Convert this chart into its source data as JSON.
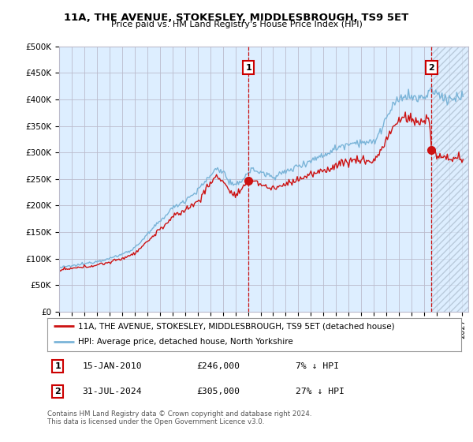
{
  "title": "11A, THE AVENUE, STOKESLEY, MIDDLESBROUGH, TS9 5ET",
  "subtitle": "Price paid vs. HM Land Registry's House Price Index (HPI)",
  "yticks": [
    0,
    50000,
    100000,
    150000,
    200000,
    250000,
    300000,
    350000,
    400000,
    450000,
    500000
  ],
  "ytick_labels": [
    "£0",
    "£50K",
    "£100K",
    "£150K",
    "£200K",
    "£250K",
    "£300K",
    "£350K",
    "£400K",
    "£450K",
    "£500K"
  ],
  "ylim": [
    0,
    500000
  ],
  "xlim_start": 1995.0,
  "xlim_end": 2027.5,
  "chart_bg_color": "#ddeeff",
  "background_color": "#ffffff",
  "grid_color": "#bbbbcc",
  "sale1_x": 2010.04,
  "sale1_y": 246000,
  "sale1_label": "1",
  "sale2_x": 2024.583,
  "sale2_y": 305000,
  "sale2_label": "2",
  "hpi_color": "#7ab4d8",
  "price_color": "#cc1111",
  "legend_label1": "11A, THE AVENUE, STOKESLEY, MIDDLESBROUGH, TS9 5ET (detached house)",
  "legend_label2": "HPI: Average price, detached house, North Yorkshire",
  "annotation1_date": "15-JAN-2010",
  "annotation1_price": "£246,000",
  "annotation1_hpi": "7% ↓ HPI",
  "annotation2_date": "31-JUL-2024",
  "annotation2_price": "£305,000",
  "annotation2_hpi": "27% ↓ HPI",
  "footer": "Contains HM Land Registry data © Crown copyright and database right 2024.\nThis data is licensed under the Open Government Licence v3.0."
}
